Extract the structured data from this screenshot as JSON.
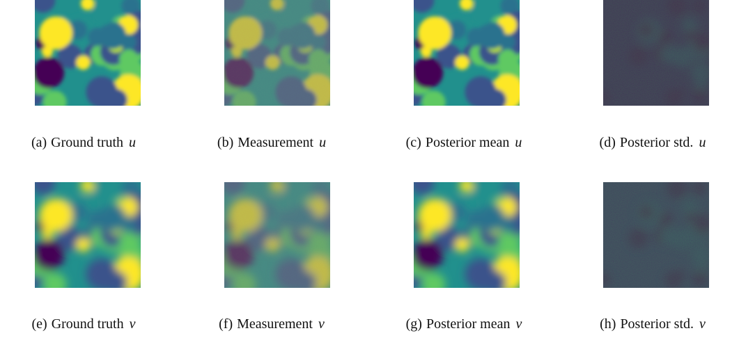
{
  "panels": [
    {
      "label": "(a)",
      "text": "Ground truth",
      "var": "u"
    },
    {
      "label": "(b)",
      "text": "Measurement",
      "var": "u"
    },
    {
      "label": "(c)",
      "text": "Posterior mean",
      "var": "u"
    },
    {
      "label": "(d)",
      "text": "Posterior std.",
      "var": "u"
    },
    {
      "label": "(e)",
      "text": "Ground truth",
      "var": "v"
    },
    {
      "label": "(f)",
      "text": "Measurement",
      "var": "v"
    },
    {
      "label": "(g)",
      "text": "Posterior mean",
      "var": "v"
    },
    {
      "label": "(h)",
      "text": "Posterior std.",
      "var": "v"
    }
  ]
}
